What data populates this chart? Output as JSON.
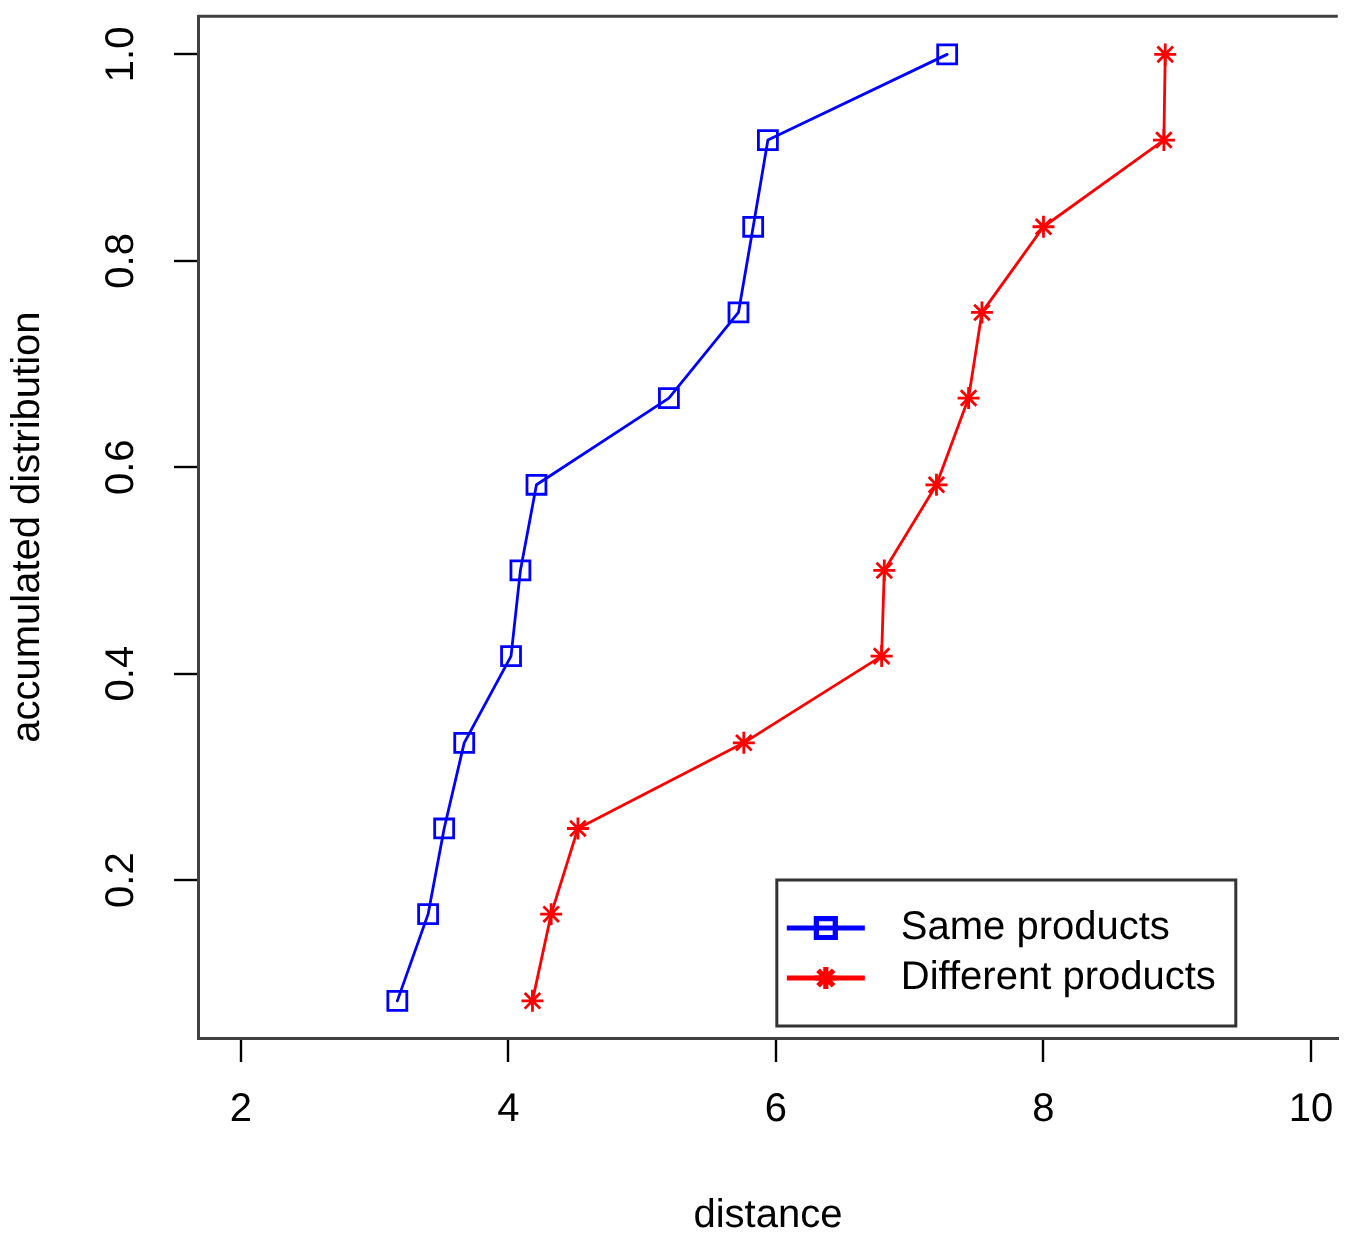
{
  "chart_data": {
    "type": "line",
    "xlabel": "distance",
    "ylabel": "accumulated distribution",
    "series": [
      {
        "name": "Same products",
        "color": "#0000ff",
        "marker": "square",
        "x": [
          3.17,
          3.4,
          3.52,
          3.67,
          4.02,
          4.09,
          4.21,
          5.2,
          5.72,
          5.83,
          5.94,
          7.28
        ],
        "values": [
          0.083,
          0.167,
          0.25,
          0.333,
          0.417,
          0.5,
          0.583,
          0.667,
          0.75,
          0.833,
          0.917,
          1.0
        ]
      },
      {
        "name": "Different products",
        "color": "#ff0000",
        "marker": "cross",
        "x": [
          4.18,
          4.32,
          4.52,
          5.76,
          6.79,
          6.81,
          7.2,
          7.44,
          7.54,
          8.0,
          8.9,
          8.91
        ],
        "values": [
          0.083,
          0.167,
          0.25,
          0.333,
          0.417,
          0.5,
          0.583,
          0.667,
          0.75,
          0.833,
          0.917,
          1.0
        ]
      }
    ],
    "xlim": [
      1.68,
      10.2
    ],
    "ylim": [
      0.047,
      1.037
    ],
    "xticks": [
      2,
      4,
      6,
      8,
      10
    ],
    "yticks": [
      0.2,
      0.4,
      0.6,
      0.8,
      {
        "value": 1,
        "label": "1.0"
      }
    ],
    "grid": false,
    "legend": "bottom right",
    "line_style": "solid"
  }
}
